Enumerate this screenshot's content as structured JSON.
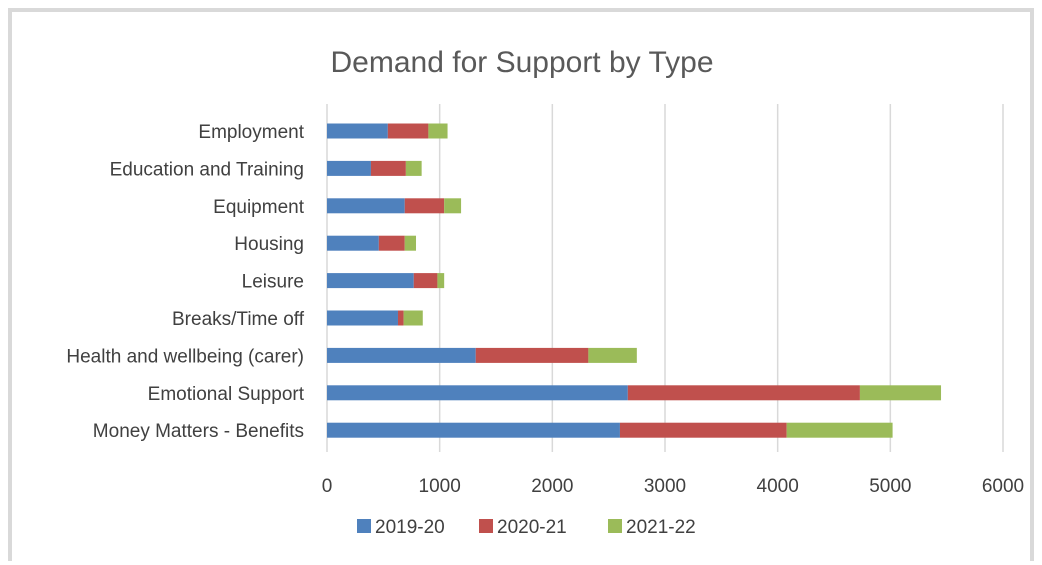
{
  "chart_data": {
    "type": "bar",
    "orientation": "horizontal",
    "stacked": true,
    "title": "Demand for Support by Type",
    "xlabel": "",
    "ylabel": "",
    "categories": [
      "Employment",
      "Education and Training",
      "Equipment",
      "Housing",
      "Leisure",
      "Breaks/Time off",
      "Health and wellbeing (carer)",
      "Emotional Support",
      "Money Matters - Benefits"
    ],
    "series": [
      {
        "name": "2019-20",
        "color": "#4f81bd",
        "values": [
          540,
          390,
          690,
          460,
          770,
          630,
          1320,
          2670,
          2600
        ]
      },
      {
        "name": "2020-21",
        "color": "#c0504d",
        "values": [
          360,
          310,
          350,
          230,
          210,
          50,
          1000,
          2060,
          1480
        ]
      },
      {
        "name": "2021-22",
        "color": "#9bbb59",
        "values": [
          170,
          140,
          150,
          100,
          60,
          170,
          430,
          720,
          940
        ]
      }
    ],
    "xlim": [
      0,
      6000
    ],
    "xticks": [
      "0",
      "1000",
      "2000",
      "3000",
      "4000",
      "5000",
      "6000"
    ],
    "grid": true,
    "legend_position": "bottom"
  }
}
